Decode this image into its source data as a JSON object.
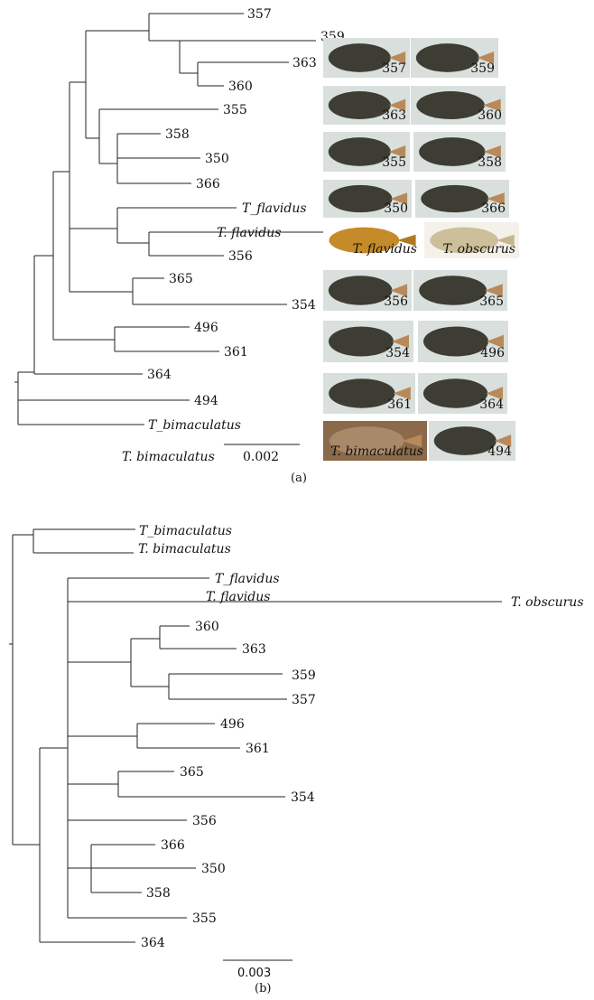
{
  "panel_a": {
    "caption": "(a)",
    "scale_label": "0.002",
    "tips": {
      "t357": "357",
      "t359": "359",
      "t363": "363",
      "t360": "360",
      "t355": "355",
      "t358": "358",
      "t350": "350",
      "t366": "366",
      "t_flav_u": "T_flavidus",
      "t_flav_d": "T. flavidus",
      "t356": "356",
      "t365": "365",
      "t354": "354",
      "t496": "496",
      "t361": "361",
      "t364": "364",
      "t494": "494",
      "t_bim_u": "T_bimaculatus",
      "t_bim_d": "T. bimaculatus"
    },
    "photos": [
      [
        "357",
        "359"
      ],
      [
        "363",
        "360"
      ],
      [
        "355",
        "358"
      ],
      [
        "350",
        "366"
      ],
      [
        "T. flavidus",
        "T. obscurus"
      ],
      [
        "356",
        "365"
      ],
      [
        "354",
        "496"
      ],
      [
        "361",
        "364"
      ],
      [
        "T. bimaculatus",
        "494"
      ]
    ]
  },
  "panel_b": {
    "caption": "(b)",
    "scale_label": "0.003",
    "tips": {
      "b_bim_u": "T_bimaculatus",
      "b_bim_d": "T. bimaculatus",
      "b_flav_u": "T_flavidus",
      "b_flav_d": "T. flavidus",
      "b_obs": "T. obscurus",
      "b360": "360",
      "b363": "363",
      "b359": "359",
      "b357": "357",
      "b496": "496",
      "b361": "361",
      "b365": "365",
      "b354": "354",
      "b356": "356",
      "b366": "366",
      "b350": "350",
      "b358": "358",
      "b355": "355",
      "b364": "364"
    }
  },
  "colors": {
    "line": "#222222",
    "photo_bg": "#d9dfdc",
    "fish_dark": "#3e3d33",
    "fish_yellow": "#c58b2a",
    "fish_pale": "#cdbf9a",
    "fish_brown": "#8a6a4a"
  }
}
